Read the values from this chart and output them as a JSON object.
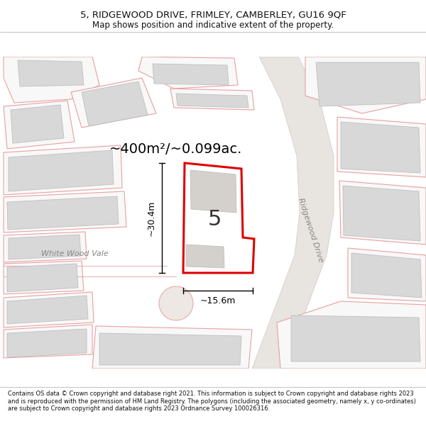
{
  "title": "5, RIDGEWOOD DRIVE, FRIMLEY, CAMBERLEY, GU16 9QF",
  "subtitle": "Map shows position and indicative extent of the property.",
  "footer": "Contains OS data © Crown copyright and database right 2021. This information is subject to Crown copyright and database rights 2023 and is reproduced with the permission of HM Land Registry. The polygons (including the associated geometry, namely x, y co-ordinates) are subject to Crown copyright and database rights 2023 Ordnance Survey 100026316.",
  "area_label": "~400m²/~0.099ac.",
  "dim_label_v": "~30.4m",
  "dim_label_h": "~15.6m",
  "street_label": "Ridgewood Drive",
  "side_label": "White Wood Vale",
  "property_number": "5",
  "bg_color": "#ffffff",
  "map_bg": "#ffffff",
  "parcel_outline": "#e8a0a0",
  "parcel_fill": "#f8f8f8",
  "building_fill": "#d8d8d8",
  "building_edge": "#c0c0c0",
  "road_fill": "#e8e4e0",
  "road_edge": "#d0c8c4",
  "highlight_color": "#dd0000",
  "dim_color": "#111111",
  "text_color": "#333333",
  "road_label_color": "#888888"
}
